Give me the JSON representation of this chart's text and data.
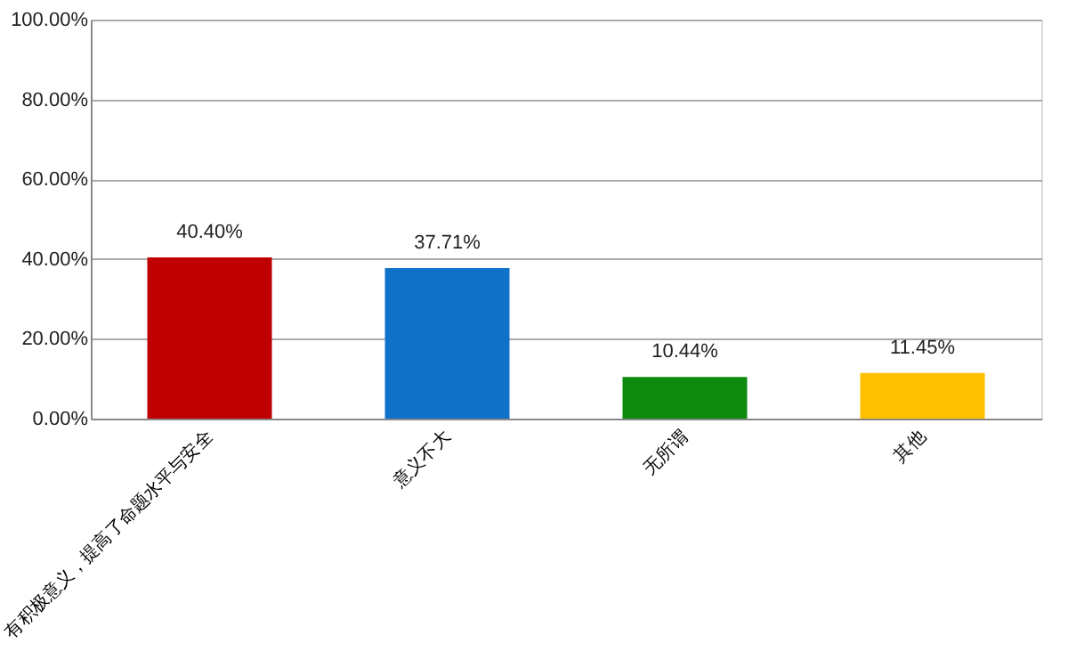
{
  "chart_data": {
    "type": "bar",
    "categories": [
      "有积极意义，提高了命题水平与安全",
      "意义不大",
      "无所谓",
      "其他"
    ],
    "values": [
      40.4,
      37.71,
      10.44,
      11.45
    ],
    "colors": [
      "#c00000",
      "#0f72c8",
      "#0e8a0e",
      "#ffc000"
    ],
    "value_labels": [
      "40.40%",
      "37.71%",
      "10.44%",
      "11.45%"
    ],
    "ylim": [
      0,
      100
    ],
    "yticks": [
      {
        "value": 0,
        "label": "0.00%"
      },
      {
        "value": 20,
        "label": "20.00%"
      },
      {
        "value": 40,
        "label": "40.00%"
      },
      {
        "value": 60,
        "label": "60.00%"
      },
      {
        "value": 80,
        "label": "80.00%"
      },
      {
        "value": 100,
        "label": "100.00%"
      }
    ],
    "grid": "y"
  }
}
